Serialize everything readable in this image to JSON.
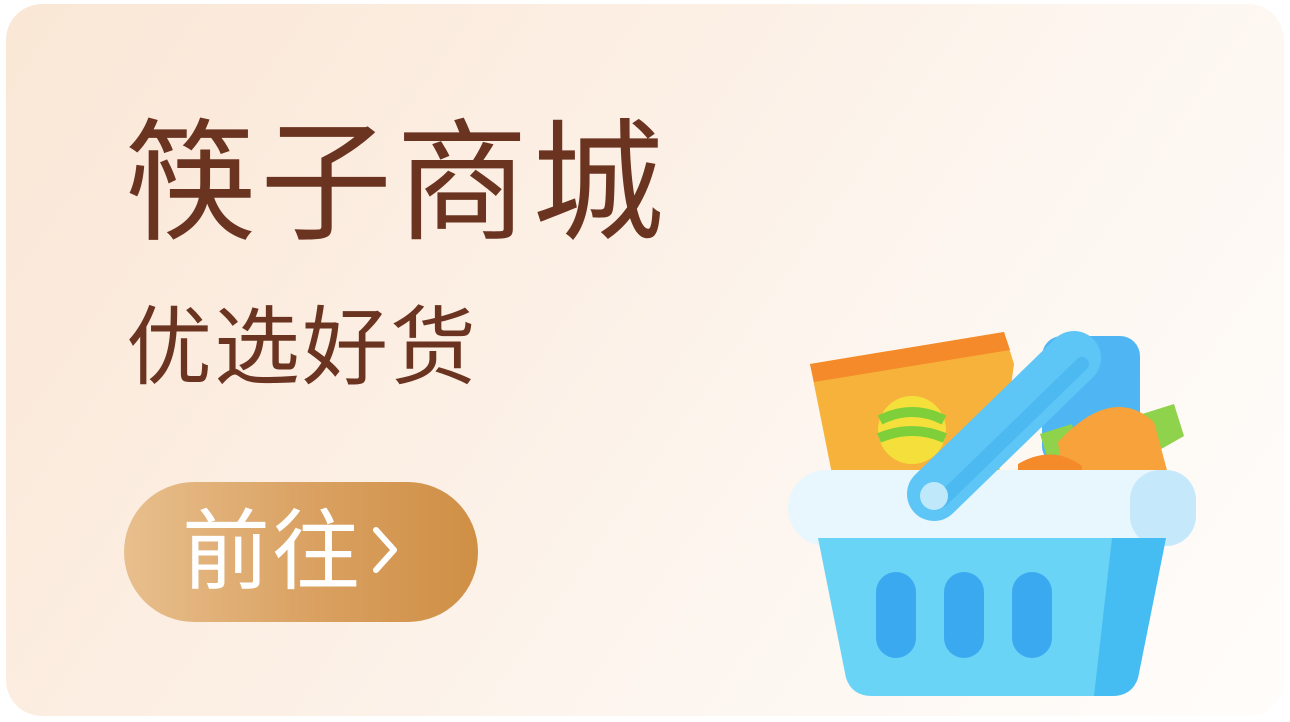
{
  "banner": {
    "title": "筷子商城",
    "subtitle": "优选好货",
    "button_label": "前往",
    "button_icon": "chevron-right-icon",
    "illustration_icon": "shopping-basket-icon"
  },
  "colors": {
    "title_text": "#6b3421",
    "button_start": "#e8bf8d",
    "button_end": "#cf8f45",
    "background_start": "#fae7d6",
    "background_end": "#fffdfb"
  }
}
